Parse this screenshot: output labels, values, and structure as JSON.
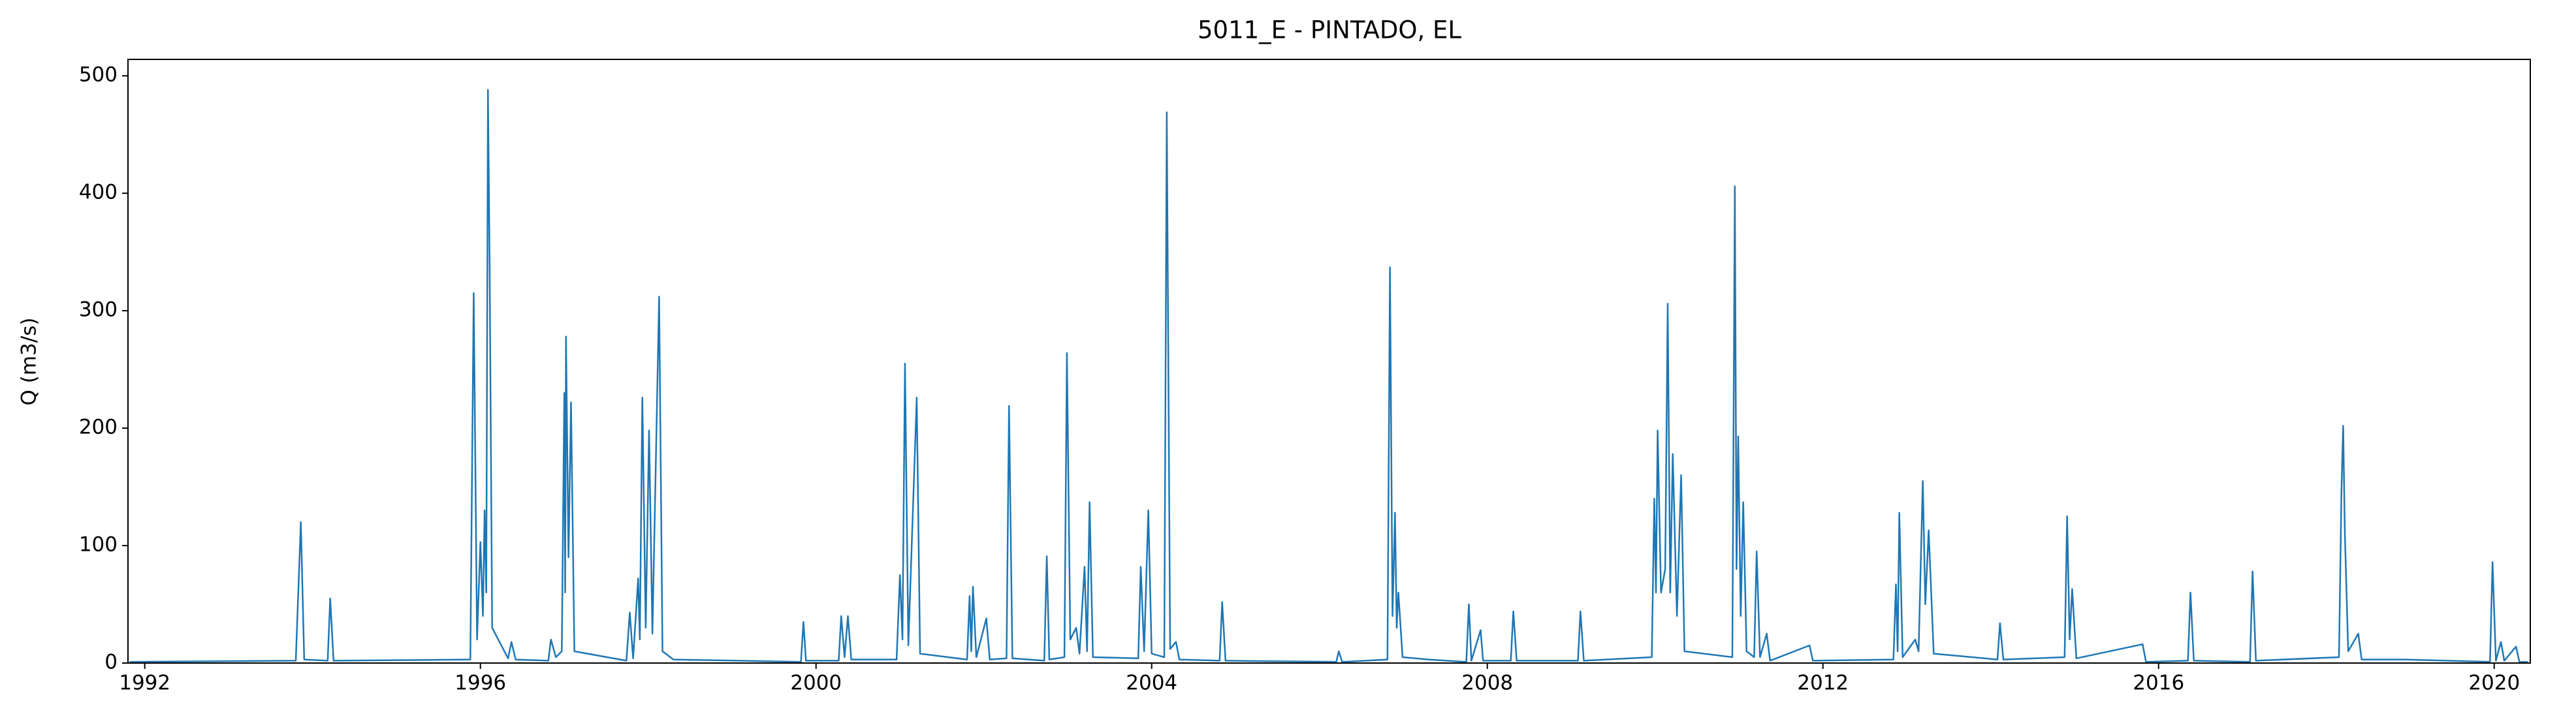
{
  "chart_data": {
    "type": "line",
    "title": "5011_E - PINTADO, EL",
    "y_label": "Q (m3/s)",
    "xlim": [
      1991.8,
      2020.43
    ],
    "xticks": [
      1992,
      1996,
      2000,
      2004,
      2008,
      2012,
      2016,
      2020
    ],
    "ylim": [
      0,
      514
    ],
    "yticks": [
      0,
      100,
      200,
      300,
      400,
      500
    ],
    "grid": false,
    "x": [
      1991.82,
      1993.8,
      1993.86,
      1993.9,
      1994.18,
      1994.21,
      1994.25,
      1995.88,
      1995.92,
      1995.96,
      1996.0,
      1996.03,
      1996.05,
      1996.07,
      1996.09,
      1996.11,
      1996.14,
      1996.33,
      1996.37,
      1996.42,
      1996.81,
      1996.84,
      1996.9,
      1996.97,
      1997.0,
      1997.01,
      1997.02,
      1997.05,
      1997.08,
      1997.12,
      1997.74,
      1997.78,
      1997.82,
      1997.88,
      1997.9,
      1997.93,
      1997.97,
      1998.01,
      1998.05,
      1998.13,
      1998.17,
      1998.3,
      1999.82,
      1999.85,
      1999.88,
      2000.27,
      2000.3,
      2000.34,
      2000.38,
      2000.42,
      2000.96,
      2001.0,
      2001.03,
      2001.06,
      2001.1,
      2001.2,
      2001.24,
      2001.8,
      2001.83,
      2001.85,
      2001.87,
      2001.91,
      2002.03,
      2002.07,
      2002.27,
      2002.3,
      2002.34,
      2002.72,
      2002.75,
      2002.78,
      2002.96,
      2002.99,
      2003.03,
      2003.1,
      2003.14,
      2003.2,
      2003.23,
      2003.26,
      2003.3,
      2003.84,
      2003.87,
      2003.91,
      2003.96,
      2004.0,
      2004.15,
      2004.18,
      2004.22,
      2004.29,
      2004.33,
      2004.81,
      2004.84,
      2004.88,
      2006.2,
      2006.23,
      2006.27,
      2006.81,
      2006.84,
      2006.87,
      2006.9,
      2006.92,
      2006.94,
      2006.99,
      2007.3,
      2007.75,
      2007.78,
      2007.81,
      2007.92,
      2007.95,
      2008.28,
      2008.31,
      2008.35,
      2009.08,
      2009.11,
      2009.15,
      2009.96,
      2009.99,
      2010.01,
      2010.03,
      2010.07,
      2010.12,
      2010.15,
      2010.18,
      2010.21,
      2010.26,
      2010.31,
      2010.35,
      2010.92,
      2010.95,
      2010.97,
      2010.99,
      2011.02,
      2011.05,
      2011.09,
      2011.18,
      2011.21,
      2011.25,
      2011.33,
      2011.37,
      2011.84,
      2011.88,
      2012.84,
      2012.87,
      2012.89,
      2012.91,
      2012.95,
      2013.1,
      2013.14,
      2013.19,
      2013.22,
      2013.26,
      2013.32,
      2014.08,
      2014.11,
      2014.15,
      2014.88,
      2014.91,
      2014.94,
      2014.97,
      2015.02,
      2015.81,
      2015.85,
      2016.35,
      2016.38,
      2016.42,
      2017.09,
      2017.12,
      2017.16,
      2018.15,
      2018.18,
      2018.2,
      2018.22,
      2018.26,
      2018.38,
      2018.42,
      2018.92,
      2019.95,
      2019.98,
      2020.02,
      2020.08,
      2020.12,
      2020.26,
      2020.3,
      2020.4
    ],
    "series": [
      {
        "color": "#1f77b4",
        "values": [
          1,
          2,
          120,
          3,
          2,
          55,
          2,
          3,
          315,
          20,
          103,
          40,
          130,
          60,
          488,
          340,
          30,
          4,
          18,
          3,
          2,
          20,
          5,
          10,
          230,
          60,
          278,
          90,
          222,
          10,
          2,
          43,
          4,
          72,
          20,
          226,
          30,
          198,
          25,
          312,
          10,
          3,
          1,
          35,
          2,
          2,
          40,
          5,
          40,
          3,
          3,
          75,
          20,
          255,
          15,
          226,
          8,
          3,
          57,
          10,
          65,
          5,
          38,
          3,
          4,
          219,
          4,
          2,
          91,
          3,
          5,
          264,
          20,
          30,
          8,
          82,
          10,
          137,
          5,
          4,
          82,
          10,
          130,
          8,
          5,
          469,
          12,
          18,
          3,
          2,
          52,
          2,
          1,
          10,
          1,
          3,
          337,
          40,
          128,
          30,
          60,
          5,
          3,
          1,
          50,
          2,
          28,
          2,
          2,
          44,
          2,
          2,
          44,
          2,
          5,
          140,
          60,
          198,
          60,
          80,
          306,
          60,
          178,
          40,
          160,
          10,
          5,
          406,
          80,
          193,
          40,
          137,
          10,
          5,
          95,
          5,
          25,
          2,
          15,
          2,
          3,
          67,
          10,
          128,
          5,
          20,
          10,
          155,
          50,
          113,
          8,
          3,
          34,
          3,
          5,
          125,
          20,
          63,
          4,
          16,
          1,
          2,
          60,
          2,
          1,
          78,
          2,
          5,
          148,
          202,
          110,
          10,
          25,
          3,
          3,
          1,
          86,
          2,
          18,
          2,
          14,
          1,
          1
        ]
      }
    ]
  }
}
